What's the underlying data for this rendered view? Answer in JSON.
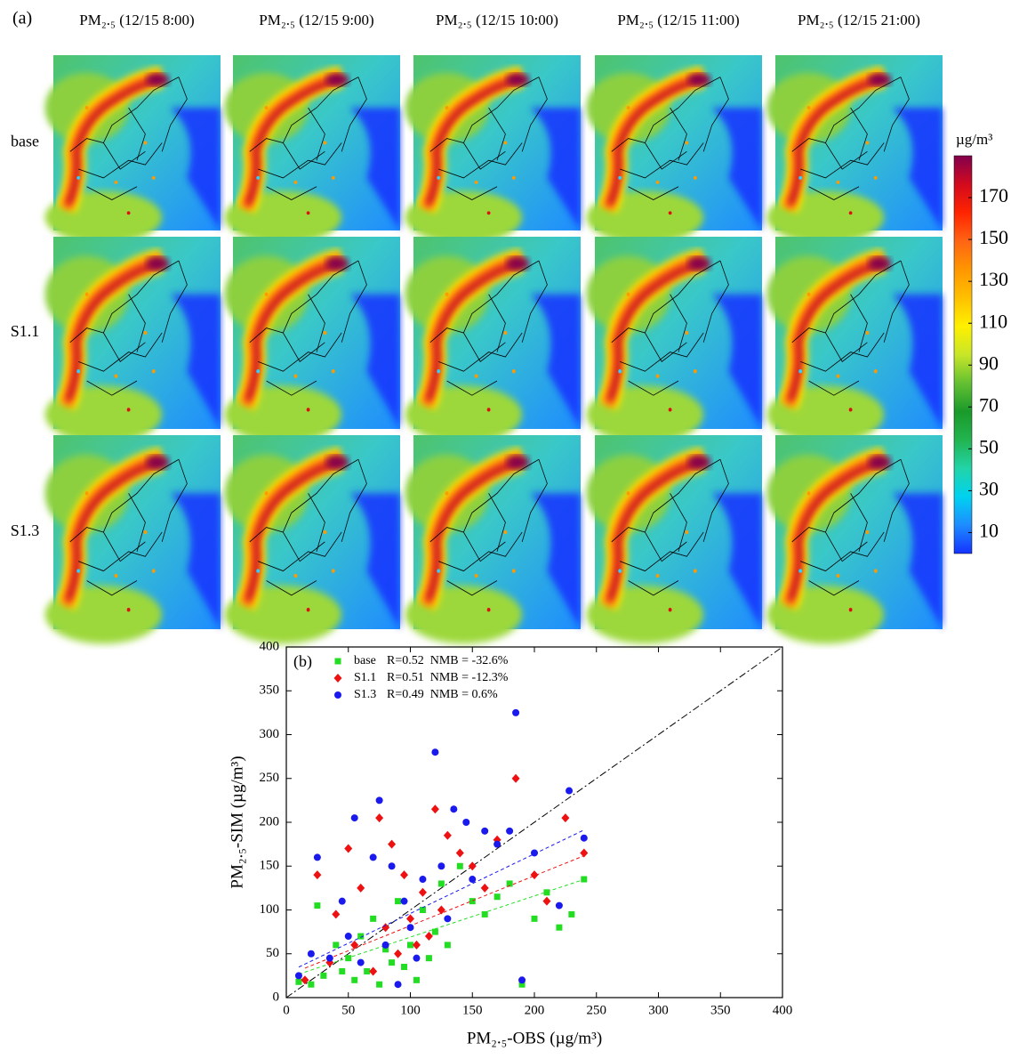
{
  "chart_data": [
    {
      "type": "map",
      "label": "(a)",
      "columns": [
        "PM₂.₅ (12/15 8:00)",
        "PM₂.₅ (12/15 9:00)",
        "PM₂.₅ (12/15 10:00)",
        "PM₂.₅ (12/15 11:00)",
        "PM₂.₅ (12/15 21:00)"
      ],
      "rows": [
        "base",
        "S1.1",
        "S1.3"
      ],
      "colorbar": {
        "unit": "µg/m³",
        "lim": [
          0,
          190
        ],
        "ticks": [
          10,
          30,
          50,
          70,
          90,
          110,
          130,
          150,
          170
        ],
        "colors": [
          "#1432ff",
          "#1e8cff",
          "#00d2f0",
          "#22d4a8",
          "#22b450",
          "#1a9a2a",
          "#64c032",
          "#c8e628",
          "#fff000",
          "#ffc000",
          "#ff9600",
          "#ff6414",
          "#ff2400",
          "#d20a1e",
          "#82004e"
        ]
      }
    },
    {
      "type": "scatter",
      "label": "(b)",
      "x_label": "PM₂.₅-OBS (µg/m³)",
      "y_label": "PM₂.₅-SIM (µg/m³)",
      "xlim": [
        0,
        400
      ],
      "ylim": [
        0,
        400
      ],
      "xticks": [
        0,
        50,
        100,
        150,
        200,
        250,
        300,
        350,
        400
      ],
      "yticks": [
        0,
        50,
        100,
        150,
        200,
        250,
        300,
        350,
        400
      ],
      "identity_line": true,
      "series": [
        {
          "name": "base",
          "stats": "R=0.52  NMB = -32.6%",
          "color": "#22dd22",
          "marker": "square",
          "fit": [
            0.47,
            22
          ],
          "x": [
            10,
            20,
            25,
            30,
            40,
            45,
            50,
            55,
            60,
            65,
            70,
            75,
            80,
            85,
            90,
            95,
            100,
            105,
            110,
            115,
            120,
            125,
            130,
            140,
            150,
            160,
            170,
            180,
            190,
            200,
            210,
            220,
            230,
            240
          ],
          "values": [
            18,
            15,
            105,
            25,
            60,
            30,
            45,
            20,
            70,
            30,
            90,
            15,
            55,
            40,
            110,
            35,
            60,
            20,
            100,
            45,
            75,
            130,
            60,
            150,
            110,
            95,
            115,
            130,
            15,
            90,
            120,
            80,
            95,
            135
          ]
        },
        {
          "name": "S1.1",
          "stats": "R=0.51  NMB = -12.3%",
          "color": "#ee1111",
          "marker": "diamond",
          "fit": [
            0.57,
            25
          ],
          "x": [
            15,
            25,
            35,
            40,
            50,
            55,
            60,
            70,
            75,
            80,
            85,
            90,
            95,
            100,
            105,
            110,
            115,
            120,
            125,
            130,
            140,
            150,
            160,
            170,
            185,
            200,
            210,
            225,
            240
          ],
          "values": [
            20,
            140,
            40,
            95,
            170,
            60,
            125,
            30,
            205,
            80,
            175,
            50,
            140,
            90,
            60,
            120,
            70,
            215,
            100,
            185,
            165,
            150,
            125,
            180,
            250,
            140,
            110,
            205,
            165
          ]
        },
        {
          "name": "S1.3",
          "stats": "R=0.49  NMB = 0.6%",
          "color": "#1a1aee",
          "marker": "circle",
          "fit": [
            0.68,
            28
          ],
          "x": [
            10,
            20,
            25,
            35,
            45,
            50,
            55,
            60,
            70,
            75,
            80,
            85,
            90,
            95,
            100,
            105,
            110,
            120,
            125,
            130,
            135,
            145,
            150,
            160,
            170,
            180,
            185,
            190,
            200,
            220,
            228,
            240
          ],
          "values": [
            25,
            50,
            160,
            45,
            110,
            70,
            205,
            40,
            160,
            225,
            60,
            150,
            15,
            110,
            80,
            45,
            135,
            280,
            150,
            90,
            215,
            200,
            135,
            190,
            175,
            190,
            325,
            20,
            165,
            105,
            236,
            182
          ]
        }
      ]
    }
  ]
}
